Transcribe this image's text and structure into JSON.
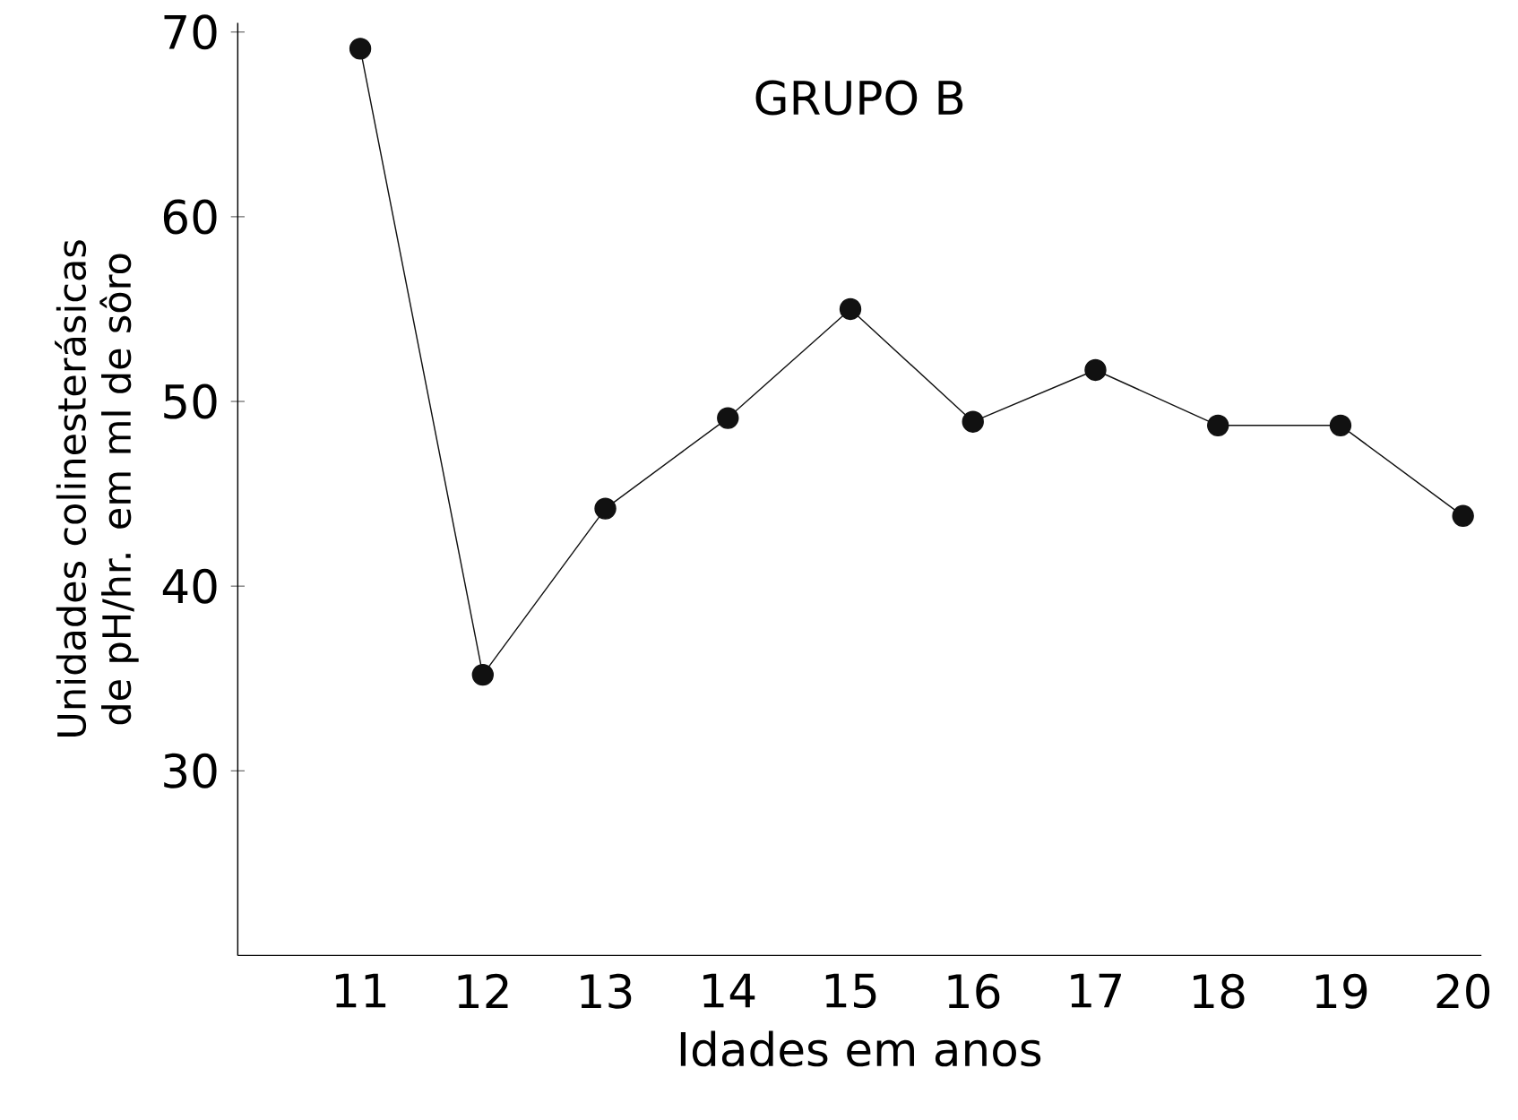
{
  "chart_data": {
    "type": "line",
    "title": "GRUPO B",
    "xlabel": "Idades em anos",
    "ylabel": "Unidades colinesterásicas de pH/hr. em ml de sôro",
    "x": [
      11,
      12,
      13,
      14,
      15,
      16,
      17,
      18,
      19,
      20
    ],
    "series": [
      {
        "color": "#111111",
        "values": [
          69.1,
          35.2,
          44.2,
          49.1,
          55.0,
          48.9,
          51.7,
          48.7,
          48.7,
          43.8
        ]
      }
    ],
    "xlim": [
      10,
      20.15
    ],
    "ylim": [
      20,
      70.5
    ],
    "xticks": [
      11,
      12,
      13,
      14,
      15,
      16,
      17,
      18,
      19,
      20
    ],
    "yticks": [
      30,
      40,
      50,
      60,
      70
    ],
    "marker": "circle",
    "line_style": "solid"
  }
}
